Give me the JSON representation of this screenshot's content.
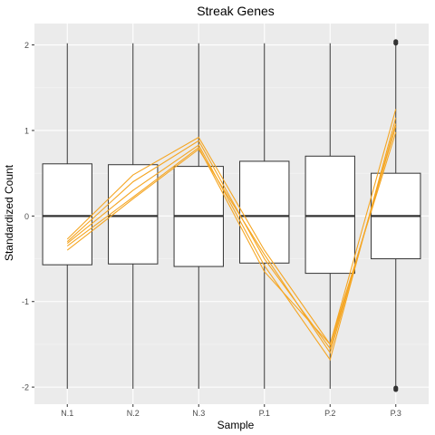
{
  "chart_data": {
    "type": "box",
    "title": "Streak Genes",
    "xlabel": "Sample",
    "ylabel": "Standardized Count",
    "categories": [
      "N.1",
      "N.2",
      "N.3",
      "P.1",
      "P.2",
      "P.3"
    ],
    "ylim": [
      -2.2,
      2.25
    ],
    "yticks": [
      -2,
      -1,
      0,
      1,
      2
    ],
    "ytick_labels": [
      "-2",
      "-1",
      "0",
      "1",
      "2"
    ],
    "boxes": [
      {
        "whisker_low": -2.02,
        "q1": -0.57,
        "median": 0,
        "q3": 0.61,
        "whisker_high": 2.02,
        "outliers": []
      },
      {
        "whisker_low": -2.02,
        "q1": -0.56,
        "median": 0,
        "q3": 0.6,
        "whisker_high": 2.02,
        "outliers": []
      },
      {
        "whisker_low": -2.02,
        "q1": -0.59,
        "median": 0,
        "q3": 0.58,
        "whisker_high": 2.02,
        "outliers": []
      },
      {
        "whisker_low": -2.02,
        "q1": -0.55,
        "median": 0,
        "q3": 0.64,
        "whisker_high": 2.02,
        "outliers": []
      },
      {
        "whisker_low": -2.02,
        "q1": -0.67,
        "median": 0,
        "q3": 0.7,
        "whisker_high": 2.02,
        "outliers": []
      },
      {
        "whisker_low": -2.0,
        "q1": -0.5,
        "median": 0,
        "q3": 0.5,
        "whisker_high": 2.0,
        "outliers": [
          2.02,
          2.04,
          -2.01,
          -2.03
        ]
      }
    ],
    "series": [
      {
        "values": [
          -0.27,
          0.48,
          0.92,
          -0.4,
          -1.5,
          1.25
        ]
      },
      {
        "values": [
          -0.3,
          0.4,
          0.88,
          -0.5,
          -1.55,
          1.05
        ]
      },
      {
        "values": [
          -0.32,
          0.3,
          0.83,
          -0.58,
          -1.68,
          1.15
        ]
      },
      {
        "values": [
          -0.35,
          0.22,
          0.8,
          -0.65,
          -1.5,
          0.98
        ]
      },
      {
        "values": [
          -0.4,
          0.2,
          0.78,
          -0.45,
          -1.6,
          1.08
        ]
      }
    ],
    "line_color": "#f5a623",
    "panel_background": "#ebebeb",
    "grid": true
  }
}
